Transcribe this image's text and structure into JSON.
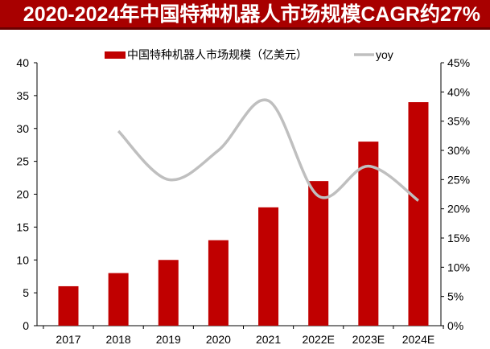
{
  "chart_data": {
    "type": "bar+line",
    "title": "2020-2024年中国特种机器人市场规模CAGR约27%",
    "categories": [
      "2017",
      "2018",
      "2019",
      "2020",
      "2021",
      "2022E",
      "2023E",
      "2024E"
    ],
    "series": [
      {
        "name": "中国特种机器人市场规模（亿美元）",
        "type": "bar",
        "axis": "left",
        "color": "#c00000",
        "values": [
          6,
          8,
          10,
          13,
          18,
          22,
          28,
          34
        ]
      },
      {
        "name": "yoy",
        "type": "line",
        "axis": "right",
        "color": "#bfbfbf",
        "values": [
          null,
          33.3,
          25.0,
          30.0,
          38.5,
          22.2,
          27.3,
          21.4
        ]
      }
    ],
    "left_axis": {
      "ylim": [
        0,
        40
      ],
      "ticks": [
        "0",
        "5",
        "10",
        "15",
        "20",
        "25",
        "30",
        "35",
        "40"
      ]
    },
    "right_axis": {
      "ylim": [
        0,
        45
      ],
      "ticks": [
        "0%",
        "5%",
        "10%",
        "15%",
        "20%",
        "25%",
        "30%",
        "35%",
        "40%",
        "45%"
      ]
    },
    "grid": false,
    "legend": "top"
  }
}
